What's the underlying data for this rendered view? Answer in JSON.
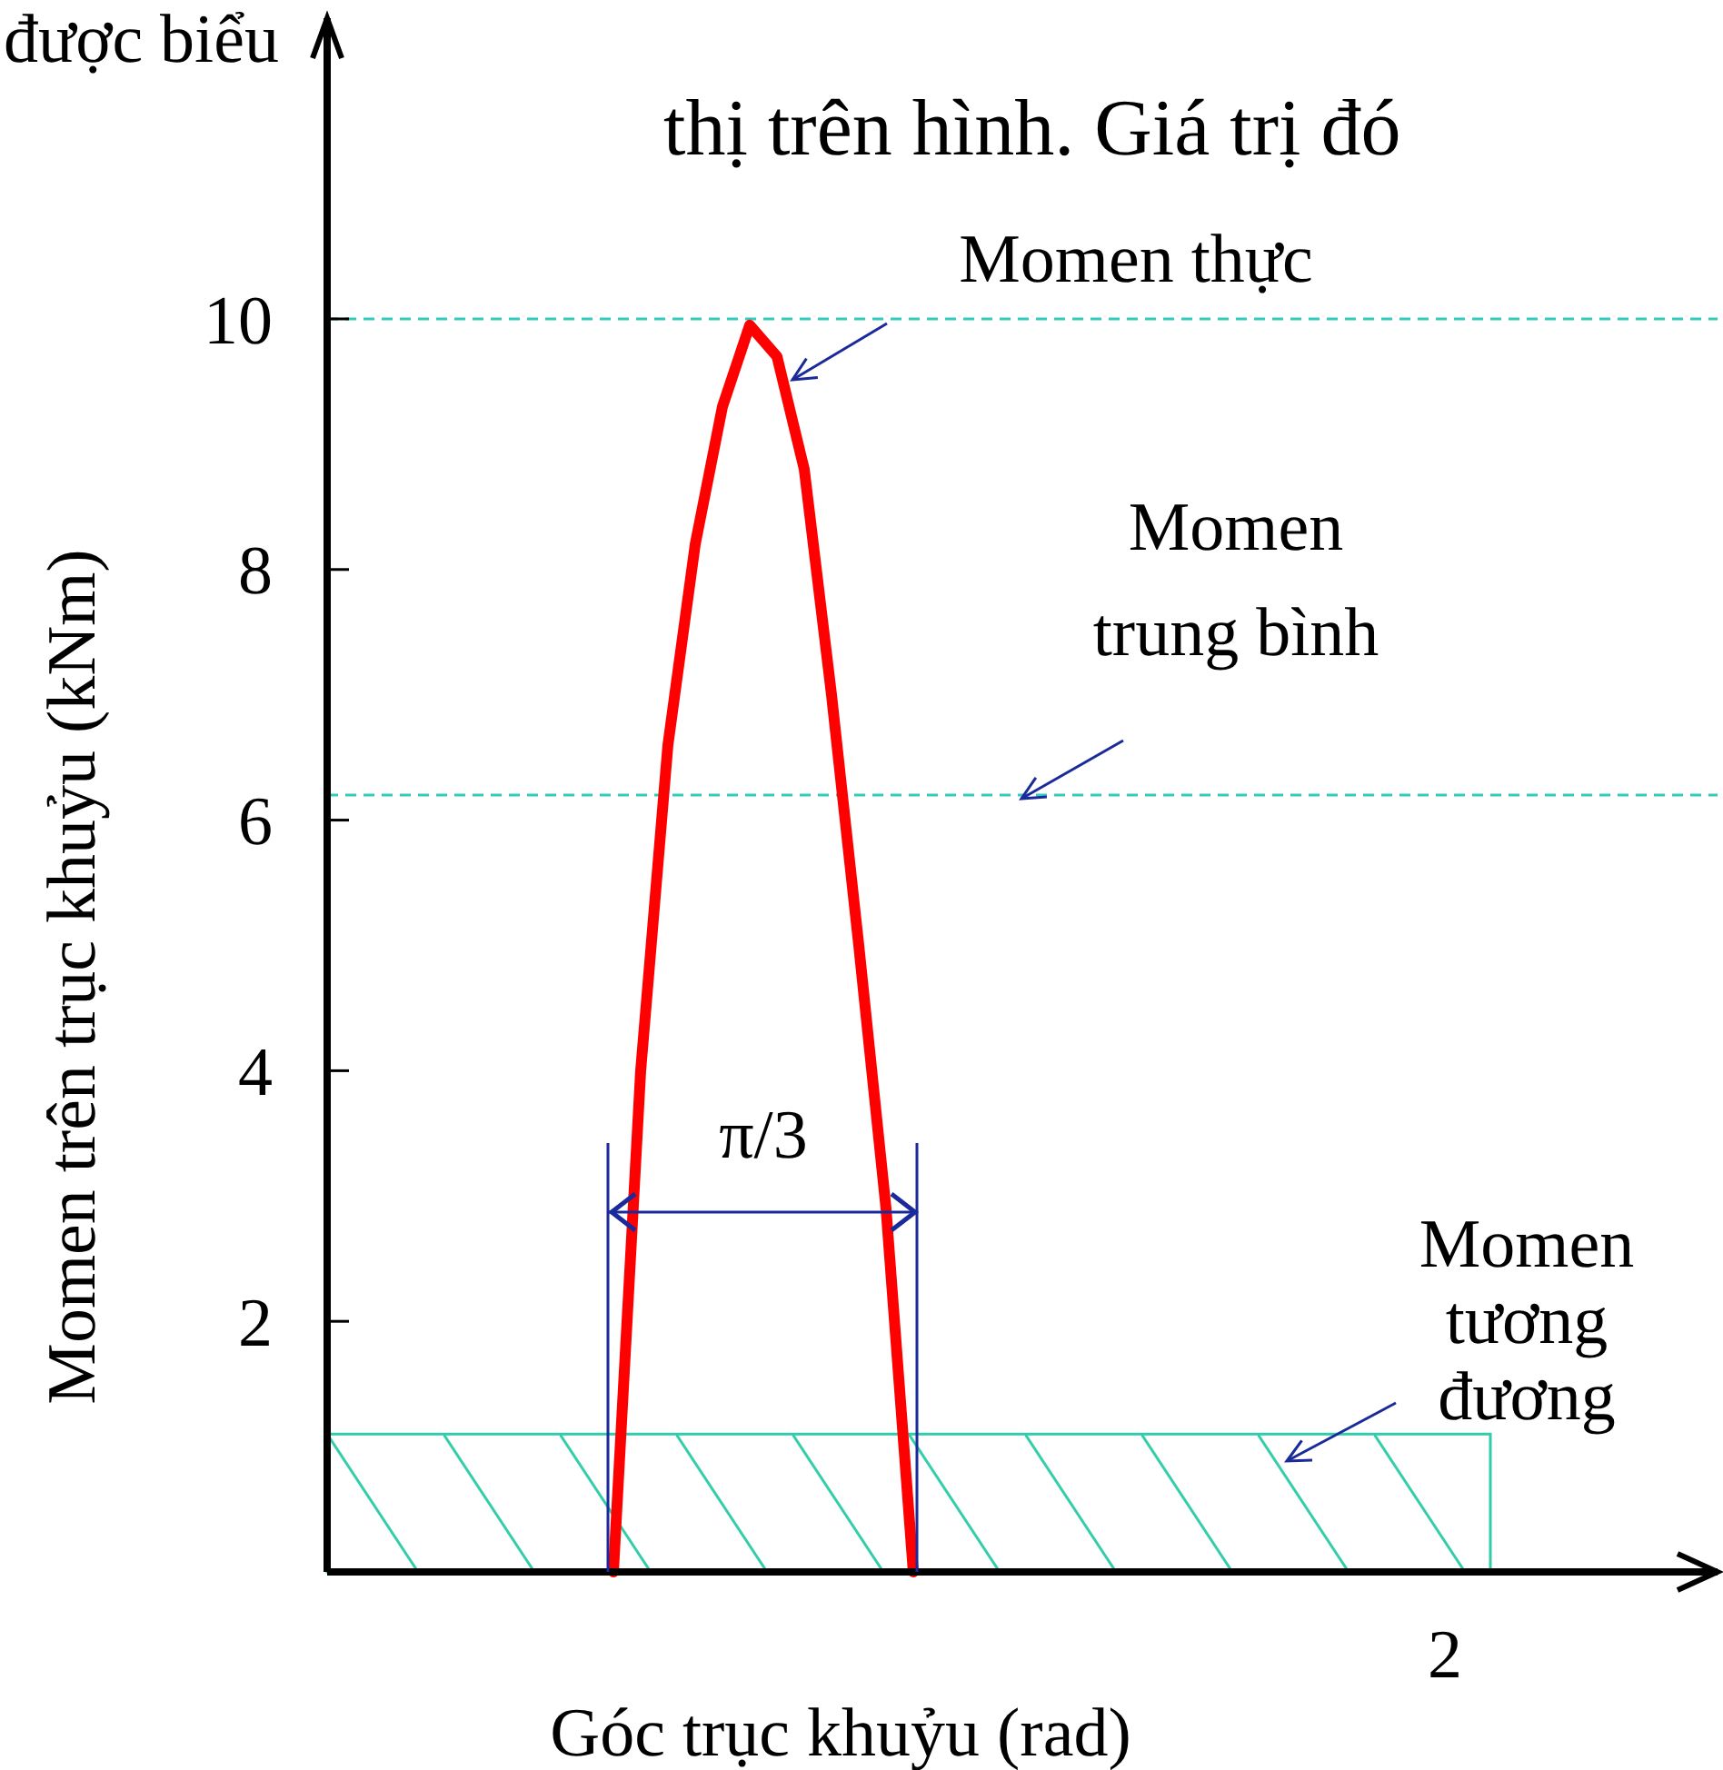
{
  "chart_data": {
    "type": "line",
    "xlabel": "Góc trục khuỷu (rad)",
    "ylabel": "Momen trên trục khuỷu  (kNm)",
    "categories": [
      null,
      null,
      null,
      null,
      null,
      null,
      null,
      null,
      null,
      null,
      null,
      null,
      null,
      null,
      null,
      null,
      null,
      null,
      null,
      null,
      null,
      null,
      null,
      null,
      null,
      null,
      null,
      null,
      null,
      null,
      null,
      null,
      null,
      null,
      null,
      null,
      null,
      null,
      null,
      null,
      null,
      null,
      null,
      null,
      null,
      null,
      null,
      null,
      null,
      null,
      null
    ],
    "series": [
      {
        "color": "#ff0000",
        "values": [
          null,
          null,
          null,
          null,
          null,
          null,
          null,
          null,
          null,
          null,
          0,
          4.0,
          6.6,
          8.2,
          9.3,
          9.95,
          9.7,
          8.8,
          7.0,
          5.0,
          2.9,
          0,
          null,
          null,
          null,
          null,
          null,
          null,
          null,
          null,
          null,
          null,
          null,
          null,
          null,
          null,
          null,
          null,
          null,
          null,
          null,
          null,
          null,
          null,
          null,
          null,
          null,
          null,
          null,
          null,
          null
        ]
      }
    ],
    "ylim": [
      0,
      12.4
    ],
    "yticks": [
      2,
      4,
      6,
      8,
      10
    ],
    "marker": "none",
    "line_style": "solid",
    "ref_lines": [
      {
        "axis": "y",
        "value": 10,
        "label": null,
        "color": "#33ccbb",
        "line_style": "dashed"
      },
      {
        "axis": "y",
        "value": 6.2,
        "label": "Momen trung bình",
        "color": "#33ccbb",
        "line_style": "dashed"
      }
    ],
    "bands": [
      {
        "axis": "y",
        "from": 0,
        "to": 1.1,
        "label": "Momen tương đương",
        "color": "#33ccaa"
      }
    ],
    "annotations": [
      "được biểu",
      "thị trên hình. Giá trị đó",
      "2",
      "Momen thực",
      "π/3"
    ]
  }
}
